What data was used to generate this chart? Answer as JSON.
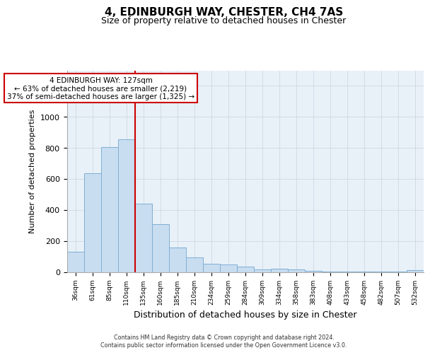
{
  "title": "4, EDINBURGH WAY, CHESTER, CH4 7AS",
  "subtitle": "Size of property relative to detached houses in Chester",
  "xlabel": "Distribution of detached houses by size in Chester",
  "ylabel": "Number of detached properties",
  "bar_color": "#c9ddf0",
  "bar_edge_color": "#7fafd4",
  "background_color": "#e8f0f8",
  "grid_color": "#d0d8e4",
  "categories": [
    "36sqm",
    "61sqm",
    "85sqm",
    "110sqm",
    "135sqm",
    "160sqm",
    "185sqm",
    "210sqm",
    "234sqm",
    "259sqm",
    "284sqm",
    "309sqm",
    "334sqm",
    "358sqm",
    "383sqm",
    "408sqm",
    "433sqm",
    "458sqm",
    "482sqm",
    "507sqm",
    "532sqm"
  ],
  "values": [
    128,
    638,
    805,
    855,
    440,
    308,
    158,
    93,
    52,
    47,
    35,
    15,
    20,
    15,
    8,
    4,
    3,
    2,
    1,
    1,
    10
  ],
  "ylim": [
    0,
    1300
  ],
  "yticks": [
    0,
    200,
    400,
    600,
    800,
    1000,
    1200
  ],
  "property_line_x": 4,
  "annotation_title": "4 EDINBURGH WAY: 127sqm",
  "annotation_line1": "← 63% of detached houses are smaller (2,219)",
  "annotation_line2": "37% of semi-detached houses are larger (1,325) →",
  "annotation_box_color": "#ffffff",
  "annotation_box_edge": "#cc0000",
  "vline_color": "#cc0000",
  "footer_line1": "Contains HM Land Registry data © Crown copyright and database right 2024.",
  "footer_line2": "Contains public sector information licensed under the Open Government Licence v3.0."
}
